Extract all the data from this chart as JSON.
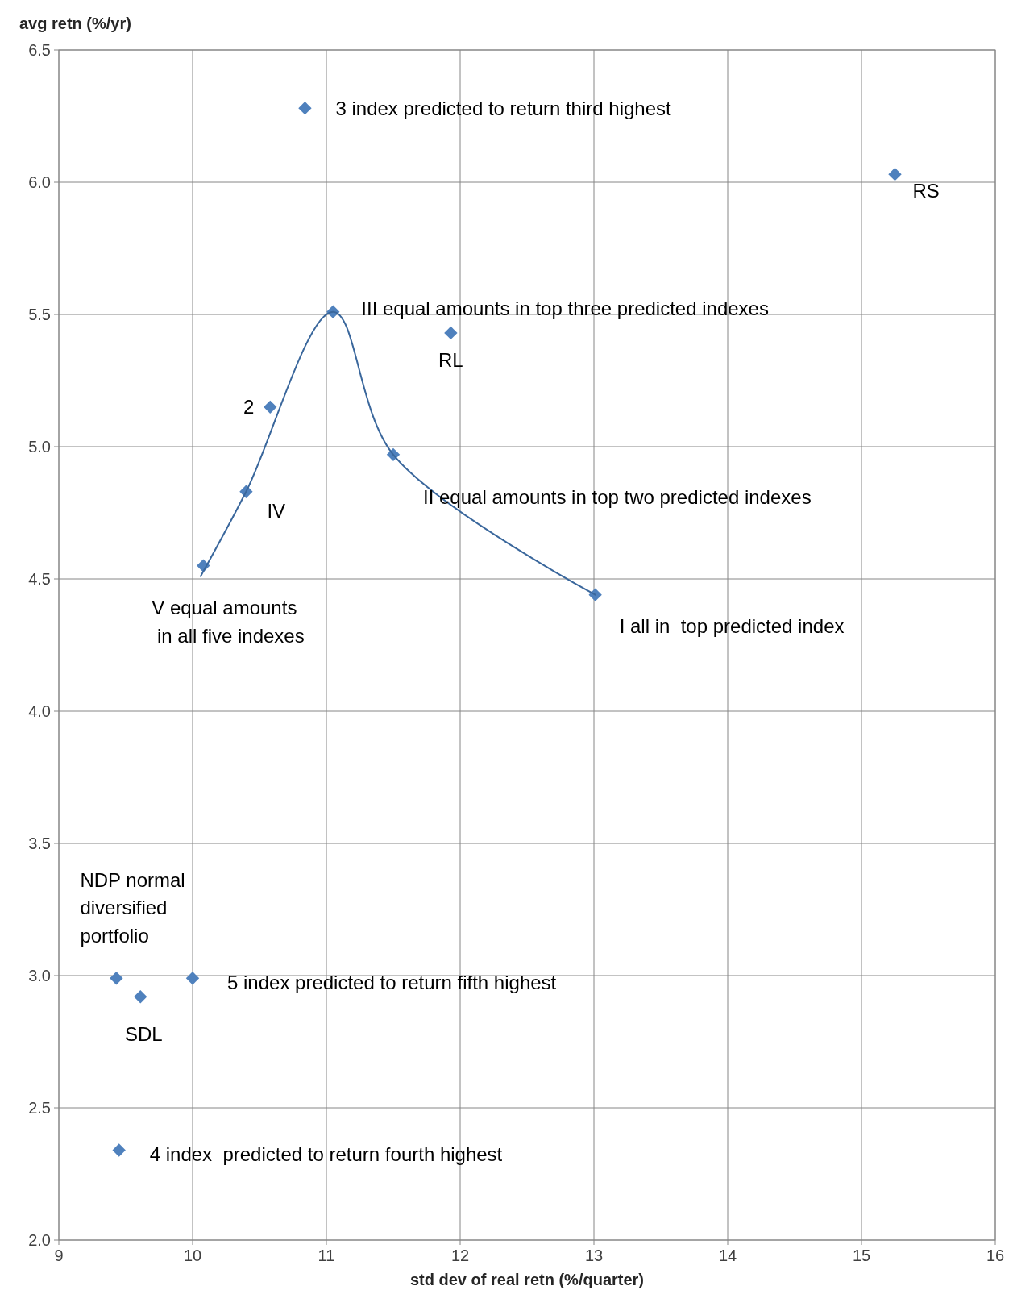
{
  "chart_data": {
    "type": "scatter",
    "xlabel": "std dev of real retn (%/quarter)",
    "ylabel": "avg retn (%/yr)",
    "xlim": [
      9,
      16
    ],
    "xticks": [
      9,
      10,
      11,
      12,
      13,
      14,
      15,
      16
    ],
    "ylim": [
      2,
      6.5
    ],
    "yticks": [
      {
        "value": 2,
        "label": "2.0"
      },
      {
        "value": 2.5,
        "label": "2.5"
      },
      {
        "value": 3,
        "label": "3.0"
      },
      {
        "value": 3.5,
        "label": "3.5"
      },
      {
        "value": 4,
        "label": "4.0"
      },
      {
        "value": 4.5,
        "label": "4.5"
      },
      {
        "value": 5,
        "label": "5.0"
      },
      {
        "value": 5.5,
        "label": "5.5"
      },
      {
        "value": 6,
        "label": "6.0"
      },
      {
        "value": 6.5,
        "label": "6.5"
      }
    ],
    "grid": true,
    "series": [
      {
        "marker": "diamond",
        "color": "#4f81bd",
        "x": [
          10.84,
          15.25,
          11.05,
          11.93,
          10.58,
          11.5,
          10.4,
          10.08,
          13.01,
          9.43,
          9.61,
          10.0,
          9.45
        ],
        "values": [
          6.28,
          6.03,
          5.51,
          5.43,
          5.15,
          4.97,
          4.83,
          4.55,
          4.44,
          2.99,
          2.92,
          2.99,
          2.34
        ]
      },
      {
        "type": "line",
        "marker": "none",
        "line_style": "solid",
        "color": "#3a679c",
        "x": [
          10.06,
          10.4,
          11.05,
          11.5,
          13.01
        ],
        "values": [
          4.51,
          4.83,
          5.51,
          4.97,
          4.44
        ]
      }
    ],
    "annotations": [
      {
        "text": "3 index predicted to return third highest",
        "x": 10.84,
        "y": 6.28
      },
      {
        "text": "RS",
        "x": 15.25,
        "y": 6.03
      },
      {
        "text": "III equal amounts in top three predicted indexes",
        "x": 11.05,
        "y": 5.51
      },
      {
        "text": "RL",
        "x": 11.93,
        "y": 5.43
      },
      {
        "text": "2",
        "x": 10.58,
        "y": 5.15
      },
      {
        "text": "II equal amounts in top two predicted indexes",
        "x": 11.5,
        "y": 4.97
      },
      {
        "text": "IV",
        "x": 10.4,
        "y": 4.83
      },
      {
        "text": "V equal amounts\n in all five indexes",
        "x": 10.08,
        "y": 4.55
      },
      {
        "text": "I all in  top predicted index",
        "x": 13.01,
        "y": 4.44
      },
      {
        "text": "NDP normal\ndiversified\nportfolio",
        "x": 9.43,
        "y": 2.99
      },
      {
        "text": "SDL",
        "x": 9.61,
        "y": 2.92
      },
      {
        "text": "5 index predicted to return fifth highest",
        "x": 10.0,
        "y": 2.99
      },
      {
        "text": "4 index  predicted to return fourth highest",
        "x": 9.45,
        "y": 2.34
      }
    ]
  }
}
